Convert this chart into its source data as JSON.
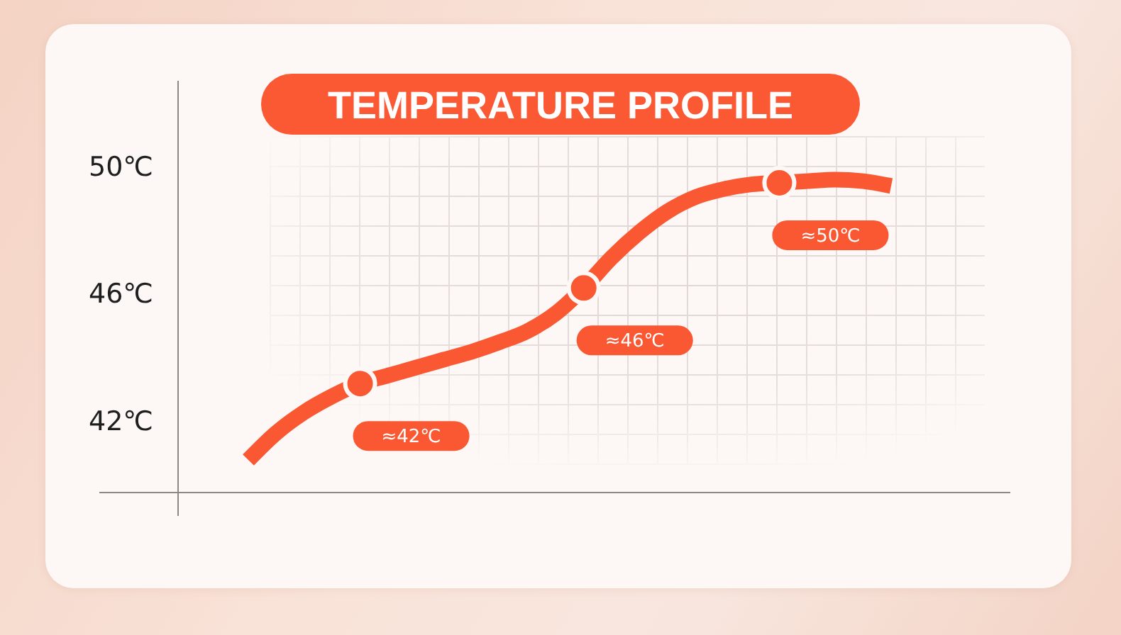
{
  "chart_data": {
    "type": "line",
    "title": "TEMPERATURE PROFILE",
    "categories": [
      null,
      null,
      null,
      null,
      null,
      null,
      null,
      null,
      null,
      null,
      null,
      null,
      null,
      null,
      null,
      null,
      null,
      null,
      null,
      null,
      null,
      null,
      null,
      null
    ],
    "series": [
      {
        "color": "#fa5833",
        "marker": "none",
        "values": [
          40.8,
          41.65,
          42.3,
          42.8,
          43.2,
          43.45,
          43.7,
          43.95,
          44.2,
          44.5,
          44.85,
          45.4,
          46.2,
          47.15,
          47.95,
          48.6,
          49.05,
          49.3,
          49.45,
          49.5,
          49.55,
          49.6,
          49.55,
          49.4
        ]
      },
      {
        "type": "scatter",
        "color": "#fa5833",
        "marker": "circle",
        "values": [
          null,
          null,
          null,
          null,
          43.2,
          null,
          null,
          null,
          null,
          null,
          null,
          null,
          46.2,
          null,
          null,
          null,
          null,
          null,
          null,
          49.5,
          null,
          null,
          null,
          null
        ]
      }
    ],
    "annotations": [
      "≈42℃",
      "≈46℃",
      "≈50℃"
    ],
    "ylim": [
      39.8,
      52.7
    ],
    "yticks": [
      {
        "value": 42,
        "label": "42℃"
      },
      {
        "value": 46,
        "label": "46℃"
      },
      {
        "value": 50,
        "label": "50℃"
      }
    ],
    "tick_labels": "y"
  }
}
